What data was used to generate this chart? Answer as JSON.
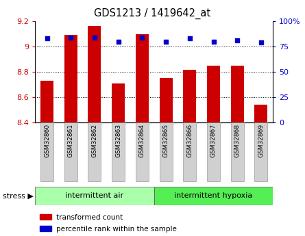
{
  "title": "GDS1213 / 1419642_at",
  "samples": [
    "GSM32860",
    "GSM32861",
    "GSM32862",
    "GSM32863",
    "GSM32864",
    "GSM32865",
    "GSM32866",
    "GSM32867",
    "GSM32868",
    "GSM32869"
  ],
  "bar_values": [
    8.73,
    9.09,
    9.16,
    8.71,
    9.1,
    8.75,
    8.82,
    8.85,
    8.85,
    8.54
  ],
  "scatter_values": [
    83,
    84,
    84,
    80,
    84,
    80,
    83,
    80,
    81,
    79
  ],
  "bar_color": "#cc0000",
  "scatter_color": "#0000cc",
  "ylim_left": [
    8.4,
    9.2
  ],
  "ylim_right": [
    0,
    100
  ],
  "yticks_left": [
    8.4,
    8.6,
    8.8,
    9.0,
    9.2
  ],
  "yticks_right": [
    0,
    25,
    50,
    75,
    100
  ],
  "ytick_labels_left": [
    "8.4",
    "8.6",
    "8.8",
    "9",
    "9.2"
  ],
  "ytick_labels_right": [
    "0",
    "25",
    "50",
    "75",
    "100%"
  ],
  "group1_label": "intermittent air",
  "group2_label": "intermittent hypoxia",
  "stress_label": "stress",
  "legend1": "transformed count",
  "legend2": "percentile rank within the sample",
  "group1_color": "#aaffaa",
  "group2_color": "#55ee55",
  "bar_width": 0.55,
  "grid_color": "black"
}
